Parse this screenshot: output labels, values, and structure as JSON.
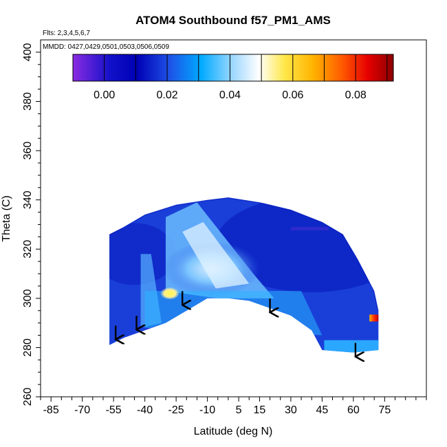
{
  "chart_data": {
    "type": "heatmap",
    "title": "ATOM4 Southbound f57_PM1_AMS",
    "flights_note": "Flts: 2,3,4,5,6,7",
    "dates_note": "MMDD: 0427,0429,0501,0503,0506,0509",
    "xlabel": "Latitude (deg N)",
    "ylabel": "Theta (C)",
    "xlim": [
      -90,
      95
    ],
    "ylim": [
      260,
      405
    ],
    "x_ticks": [
      -85,
      -70,
      -55,
      -40,
      -25,
      -10,
      5,
      15,
      30,
      45,
      60,
      75
    ],
    "y_ticks": [
      260,
      280,
      300,
      320,
      340,
      360,
      380,
      400
    ],
    "colorbar": {
      "range": [
        -0.01,
        0.092
      ],
      "ticks": [
        0.0,
        0.02,
        0.04,
        0.06,
        0.08
      ],
      "tick_labels": [
        "0.00",
        "0.02",
        "0.04",
        "0.06",
        "0.08"
      ],
      "colors": [
        "#8a2be2",
        "#1010c8",
        "#0000b4",
        "#1e50e6",
        "#00aaff",
        "#9fd8ff",
        "#ffffff",
        "#ffe84a",
        "#ffb300",
        "#ff5a00",
        "#e60000",
        "#8b0000"
      ]
    },
    "field": {
      "lat_range": [
        -57,
        72
      ],
      "theta_top_points": [
        [
          -57,
          326
        ],
        [
          -50,
          329
        ],
        [
          -40,
          334
        ],
        [
          -25,
          338
        ],
        [
          -10,
          340
        ],
        [
          0,
          341
        ],
        [
          15,
          339
        ],
        [
          30,
          336
        ],
        [
          45,
          331
        ],
        [
          55,
          326
        ],
        [
          62,
          316
        ],
        [
          70,
          303
        ],
        [
          72,
          295
        ]
      ],
      "theta_bottom_points": [
        [
          -57,
          281
        ],
        [
          -50,
          284
        ],
        [
          -40,
          287
        ],
        [
          -30,
          290
        ],
        [
          -20,
          295
        ],
        [
          -10,
          300
        ],
        [
          0,
          300
        ],
        [
          10,
          299
        ],
        [
          20,
          296
        ],
        [
          30,
          293
        ],
        [
          40,
          287
        ],
        [
          45,
          279
        ],
        [
          60,
          278
        ],
        [
          72,
          279
        ]
      ],
      "features": [
        {
          "name": "high-streak-center",
          "lat": -8,
          "theta": 318,
          "value": 0.04
        },
        {
          "name": "hotspot-yellow",
          "lat": -28,
          "theta": 302,
          "value": 0.055
        },
        {
          "name": "hotspot-red",
          "lat": 71,
          "theta": 292,
          "value": 0.085
        },
        {
          "name": "low-band-northeast",
          "lat": 40,
          "theta": 328,
          "value": 0.005
        }
      ]
    },
    "arrows": [
      {
        "lat": -54,
        "theta": 285
      },
      {
        "lat": -44,
        "theta": 289
      },
      {
        "lat": -22,
        "theta": 299
      },
      {
        "lat": 20,
        "theta": 296
      },
      {
        "lat": 61,
        "theta": 278
      }
    ]
  }
}
